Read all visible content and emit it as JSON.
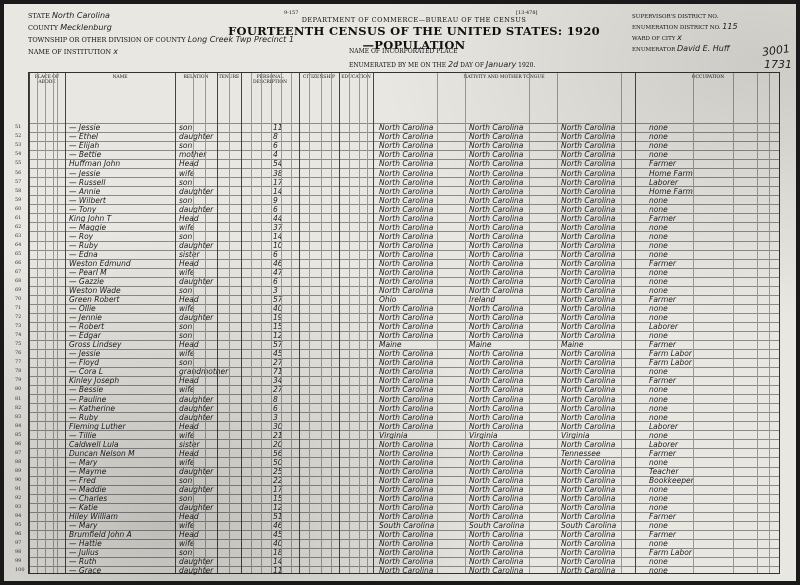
{
  "form": {
    "number_left": "9-157",
    "number_right": "[13-478]",
    "department": "DEPARTMENT OF COMMERCE—BUREAU OF THE CENSUS",
    "title": "FOURTEENTH CENSUS OF THE UNITED STATES: 1920—POPULATION"
  },
  "header_left": {
    "state_label": "STATE",
    "state_value": "North Carolina",
    "county_label": "COUNTY",
    "county_value": "Mecklenburg",
    "township_label": "TOWNSHIP OR OTHER DIVISION OF COUNTY",
    "township_value": "Long Creek Twp Precinct 1",
    "institution_label": "NAME OF INSTITUTION",
    "institution_value": "x"
  },
  "header_center": {
    "incorporated_label": "NAME OF INCORPORATED PLACE",
    "enumerated_label": "ENUMERATED BY ME ON THE",
    "day_value": "2d",
    "day_label": "DAY OF",
    "month_value": "January",
    "year_label": "1920."
  },
  "header_right": {
    "supervisor_label": "SUPERVISOR'S DISTRICT NO.",
    "enum_district_label": "ENUMERATION DISTRICT NO.",
    "enum_district_value": "115",
    "ward_label": "WARD OF CITY",
    "ward_value": "x",
    "enumerator_label": "ENUMERATOR",
    "enumerator_value": "David E. Huff",
    "sheet_value": "3001",
    "sheet_value_2": "1731"
  },
  "columns": [
    "PLACE OF ABODE",
    "NAME",
    "RELATION",
    "TENURE",
    "PERSONAL DESCRIPTION",
    "CITIZENSHIP",
    "EDUCATION",
    "NATIVITY AND MOTHER TONGUE",
    "OCCUPATION"
  ],
  "rows": [
    {
      "line": "51",
      "name": "— Jessie",
      "relation": "son",
      "age": "11",
      "birth": "North Carolina",
      "father": "North Carolina",
      "mother": "North Carolina",
      "occupation": "none"
    },
    {
      "line": "52",
      "name": "— Ethel",
      "relation": "daughter",
      "age": "8",
      "birth": "North Carolina",
      "father": "North Carolina",
      "mother": "North Carolina",
      "occupation": "none"
    },
    {
      "line": "53",
      "name": "— Elijah",
      "relation": "son",
      "age": "6",
      "birth": "North Carolina",
      "father": "North Carolina",
      "mother": "North Carolina",
      "occupation": "none"
    },
    {
      "line": "54",
      "name": "— Bettie",
      "relation": "mother",
      "age": "4",
      "birth": "North Carolina",
      "father": "North Carolina",
      "mother": "North Carolina",
      "occupation": "none"
    },
    {
      "line": "55",
      "name": "Huffman John",
      "relation": "Head",
      "age": "54",
      "birth": "North Carolina",
      "father": "North Carolina",
      "mother": "North Carolina",
      "occupation": "Farmer"
    },
    {
      "line": "56",
      "name": "— Jessie",
      "relation": "wife",
      "age": "38",
      "birth": "North Carolina",
      "father": "North Carolina",
      "mother": "North Carolina",
      "occupation": "Home Farm"
    },
    {
      "line": "57",
      "name": "— Russell",
      "relation": "son",
      "age": "17",
      "birth": "North Carolina",
      "father": "North Carolina",
      "mother": "North Carolina",
      "occupation": "Laborer"
    },
    {
      "line": "58",
      "name": "— Annie",
      "relation": "daughter",
      "age": "14",
      "birth": "North Carolina",
      "father": "North Carolina",
      "mother": "North Carolina",
      "occupation": "Home Farm"
    },
    {
      "line": "59",
      "name": "— Wilbert",
      "relation": "son",
      "age": "9",
      "birth": "North Carolina",
      "father": "North Carolina",
      "mother": "North Carolina",
      "occupation": "none"
    },
    {
      "line": "60",
      "name": "— Tony",
      "relation": "daughter",
      "age": "6",
      "birth": "North Carolina",
      "father": "North Carolina",
      "mother": "North Carolina",
      "occupation": "none"
    },
    {
      "line": "61",
      "name": "King John T",
      "relation": "Head",
      "age": "44",
      "birth": "North Carolina",
      "father": "North Carolina",
      "mother": "North Carolina",
      "occupation": "Farmer"
    },
    {
      "line": "62",
      "name": "— Maggie",
      "relation": "wife",
      "age": "37",
      "birth": "North Carolina",
      "father": "North Carolina",
      "mother": "North Carolina",
      "occupation": "none"
    },
    {
      "line": "63",
      "name": "— Roy",
      "relation": "son",
      "age": "14",
      "birth": "North Carolina",
      "father": "North Carolina",
      "mother": "North Carolina",
      "occupation": "none"
    },
    {
      "line": "64",
      "name": "— Ruby",
      "relation": "daughter",
      "age": "10",
      "birth": "North Carolina",
      "father": "North Carolina",
      "mother": "North Carolina",
      "occupation": "none"
    },
    {
      "line": "65",
      "name": "— Edna",
      "relation": "sister",
      "age": "6",
      "birth": "North Carolina",
      "father": "North Carolina",
      "mother": "North Carolina",
      "occupation": "none"
    },
    {
      "line": "66",
      "name": "Weston Edmund",
      "relation": "Head",
      "age": "46",
      "birth": "North Carolina",
      "father": "North Carolina",
      "mother": "North Carolina",
      "occupation": "Farmer"
    },
    {
      "line": "67",
      "name": "— Pearl M",
      "relation": "wife",
      "age": "47",
      "birth": "North Carolina",
      "father": "North Carolina",
      "mother": "North Carolina",
      "occupation": "none"
    },
    {
      "line": "68",
      "name": "— Gazzie",
      "relation": "daughter",
      "age": "6",
      "birth": "North Carolina",
      "father": "North Carolina",
      "mother": "North Carolina",
      "occupation": "none"
    },
    {
      "line": "69",
      "name": "Weston Wade",
      "relation": "son",
      "age": "3",
      "birth": "North Carolina",
      "father": "North Carolina",
      "mother": "North Carolina",
      "occupation": "none"
    },
    {
      "line": "70",
      "name": "Green Robert",
      "relation": "Head",
      "age": "57",
      "birth": "Ohio",
      "father": "Ireland",
      "mother": "North Carolina",
      "occupation": "Farmer"
    },
    {
      "line": "71",
      "name": "— Ollie",
      "relation": "wife",
      "age": "40",
      "birth": "North Carolina",
      "father": "North Carolina",
      "mother": "North Carolina",
      "occupation": "none"
    },
    {
      "line": "72",
      "name": "— Jennie",
      "relation": "daughter",
      "age": "19",
      "birth": "North Carolina",
      "father": "North Carolina",
      "mother": "North Carolina",
      "occupation": "none"
    },
    {
      "line": "73",
      "name": "— Robert",
      "relation": "son",
      "age": "15",
      "birth": "North Carolina",
      "father": "North Carolina",
      "mother": "North Carolina",
      "occupation": "Laborer"
    },
    {
      "line": "74",
      "name": "— Edgar",
      "relation": "son",
      "age": "12",
      "birth": "North Carolina",
      "father": "North Carolina",
      "mother": "North Carolina",
      "occupation": "none"
    },
    {
      "line": "75",
      "name": "Gross Lindsey",
      "relation": "Head",
      "age": "57",
      "birth": "Maine",
      "father": "Maine",
      "mother": "Maine",
      "occupation": "Farmer"
    },
    {
      "line": "76",
      "name": "— Jessie",
      "relation": "wife",
      "age": "45",
      "birth": "North Carolina",
      "father": "North Carolina",
      "mother": "North Carolina",
      "occupation": "Farm Labor"
    },
    {
      "line": "77",
      "name": "— Floyd",
      "relation": "son",
      "age": "27",
      "birth": "North Carolina",
      "father": "North Carolina",
      "mother": "North Carolina",
      "occupation": "Farm Labor"
    },
    {
      "line": "78",
      "name": "— Cora L",
      "relation": "grandmother",
      "age": "71",
      "birth": "North Carolina",
      "father": "North Carolina",
      "mother": "North Carolina",
      "occupation": "none"
    },
    {
      "line": "79",
      "name": "Kinley Joseph",
      "relation": "Head",
      "age": "34",
      "birth": "North Carolina",
      "father": "North Carolina",
      "mother": "North Carolina",
      "occupation": "Farmer"
    },
    {
      "line": "80",
      "name": "— Bessie",
      "relation": "wife",
      "age": "27",
      "birth": "North Carolina",
      "father": "North Carolina",
      "mother": "North Carolina",
      "occupation": "none"
    },
    {
      "line": "81",
      "name": "— Pauline",
      "relation": "daughter",
      "age": "8",
      "birth": "North Carolina",
      "father": "North Carolina",
      "mother": "North Carolina",
      "occupation": "none"
    },
    {
      "line": "82",
      "name": "— Katherine",
      "relation": "daughter",
      "age": "6",
      "birth": "North Carolina",
      "father": "North Carolina",
      "mother": "North Carolina",
      "occupation": "none"
    },
    {
      "line": "83",
      "name": "— Ruby",
      "relation": "daughter",
      "age": "3",
      "birth": "North Carolina",
      "father": "North Carolina",
      "mother": "North Carolina",
      "occupation": "none"
    },
    {
      "line": "84",
      "name": "Fleming Luther",
      "relation": "Head",
      "age": "30",
      "birth": "North Carolina",
      "father": "North Carolina",
      "mother": "North Carolina",
      "occupation": "Laborer"
    },
    {
      "line": "85",
      "name": "— Tillie",
      "relation": "wife",
      "age": "21",
      "birth": "Virginia",
      "father": "Virginia",
      "mother": "Virginia",
      "occupation": "none"
    },
    {
      "line": "86",
      "name": "Caldwell Lula",
      "relation": "sister",
      "age": "20",
      "birth": "North Carolina",
      "father": "North Carolina",
      "mother": "North Carolina",
      "occupation": "Laborer"
    },
    {
      "line": "87",
      "name": "Duncan Nelson M",
      "relation": "Head",
      "age": "56",
      "birth": "North Carolina",
      "father": "North Carolina",
      "mother": "Tennessee",
      "occupation": "Farmer"
    },
    {
      "line": "88",
      "name": "— Mary",
      "relation": "wife",
      "age": "50",
      "birth": "North Carolina",
      "father": "North Carolina",
      "mother": "North Carolina",
      "occupation": "none"
    },
    {
      "line": "89",
      "name": "— Mayme",
      "relation": "daughter",
      "age": "25",
      "birth": "North Carolina",
      "father": "North Carolina",
      "mother": "North Carolina",
      "occupation": "Teacher"
    },
    {
      "line": "90",
      "name": "— Fred",
      "relation": "son",
      "age": "22",
      "birth": "North Carolina",
      "father": "North Carolina",
      "mother": "North Carolina",
      "occupation": "Bookkeeper"
    },
    {
      "line": "91",
      "name": "— Maddie",
      "relation": "daughter",
      "age": "17",
      "birth": "North Carolina",
      "father": "North Carolina",
      "mother": "North Carolina",
      "occupation": "none"
    },
    {
      "line": "92",
      "name": "— Charles",
      "relation": "son",
      "age": "15",
      "birth": "North Carolina",
      "father": "North Carolina",
      "mother": "North Carolina",
      "occupation": "none"
    },
    {
      "line": "93",
      "name": "— Katie",
      "relation": "daughter",
      "age": "12",
      "birth": "North Carolina",
      "father": "North Carolina",
      "mother": "North Carolina",
      "occupation": "none"
    },
    {
      "line": "94",
      "name": "Hiley William",
      "relation": "Head",
      "age": "51",
      "birth": "North Carolina",
      "father": "North Carolina",
      "mother": "North Carolina",
      "occupation": "Farmer"
    },
    {
      "line": "95",
      "name": "— Mary",
      "relation": "wife",
      "age": "46",
      "birth": "South Carolina",
      "father": "South Carolina",
      "mother": "South Carolina",
      "occupation": "none"
    },
    {
      "line": "96",
      "name": "Brumfield John A",
      "relation": "Head",
      "age": "45",
      "birth": "North Carolina",
      "father": "North Carolina",
      "mother": "North Carolina",
      "occupation": "Farmer"
    },
    {
      "line": "97",
      "name": "— Hattie",
      "relation": "wife",
      "age": "40",
      "birth": "North Carolina",
      "father": "North Carolina",
      "mother": "North Carolina",
      "occupation": "none"
    },
    {
      "line": "98",
      "name": "— Julius",
      "relation": "son",
      "age": "18",
      "birth": "North Carolina",
      "father": "North Carolina",
      "mother": "North Carolina",
      "occupation": "Farm Labor"
    },
    {
      "line": "99",
      "name": "— Ruth",
      "relation": "daughter",
      "age": "14",
      "birth": "North Carolina",
      "father": "North Carolina",
      "mother": "North Carolina",
      "occupation": "none"
    },
    {
      "line": "100",
      "name": "— Grace",
      "relation": "daughter",
      "age": "11",
      "birth": "North Carolina",
      "father": "North Carolina",
      "mother": "North Carolina",
      "occupation": "none"
    }
  ]
}
